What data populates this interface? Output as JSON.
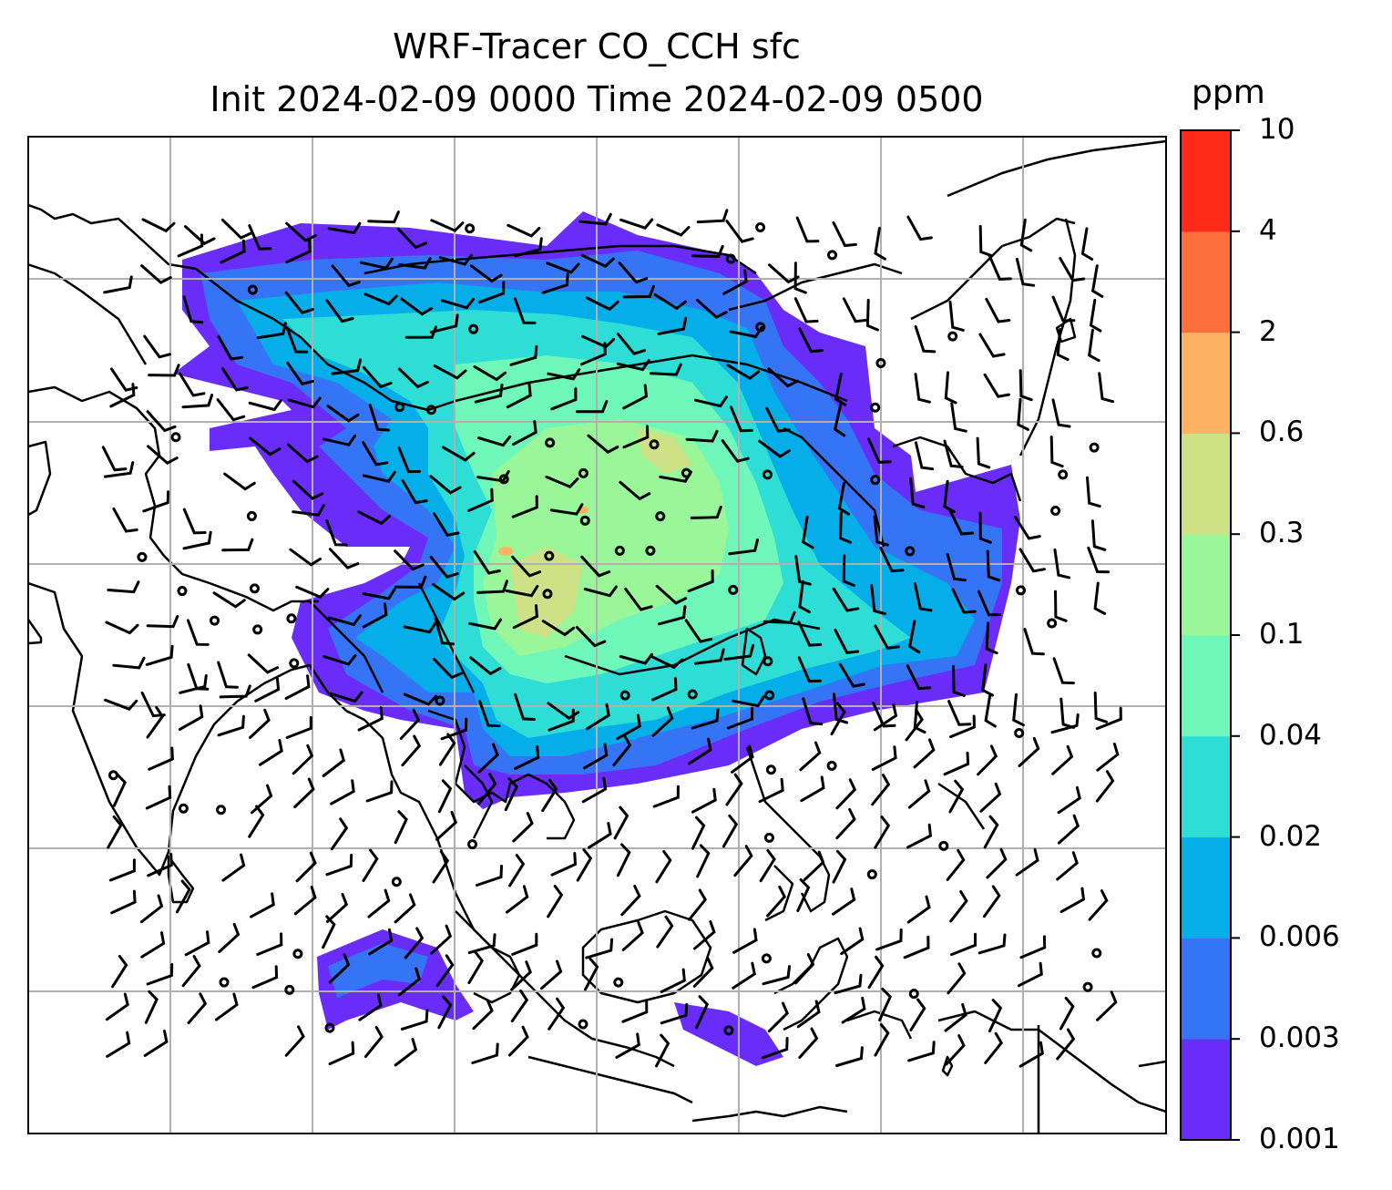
{
  "title": {
    "line1": "WRF-Tracer CO_CCH sfc",
    "line2": "Init 2024-02-09 0000 Time 2024-02-09 0500"
  },
  "colorbar": {
    "unit": "ppm",
    "levels": [
      "0.001",
      "0.003",
      "0.006",
      "0.02",
      "0.04",
      "0.1",
      "0.3",
      "0.6",
      "2",
      "4",
      "10"
    ],
    "colors": [
      "#6a2cf8",
      "#3574f4",
      "#05aee8",
      "#2dddd6",
      "#6ef7b8",
      "#99f79a",
      "#cee187",
      "#fdb162",
      "#ff6f3c",
      "#ff2a18"
    ]
  },
  "map": {
    "gridlines": true,
    "content": "surface CO tracer concentration with wind barbs"
  }
}
